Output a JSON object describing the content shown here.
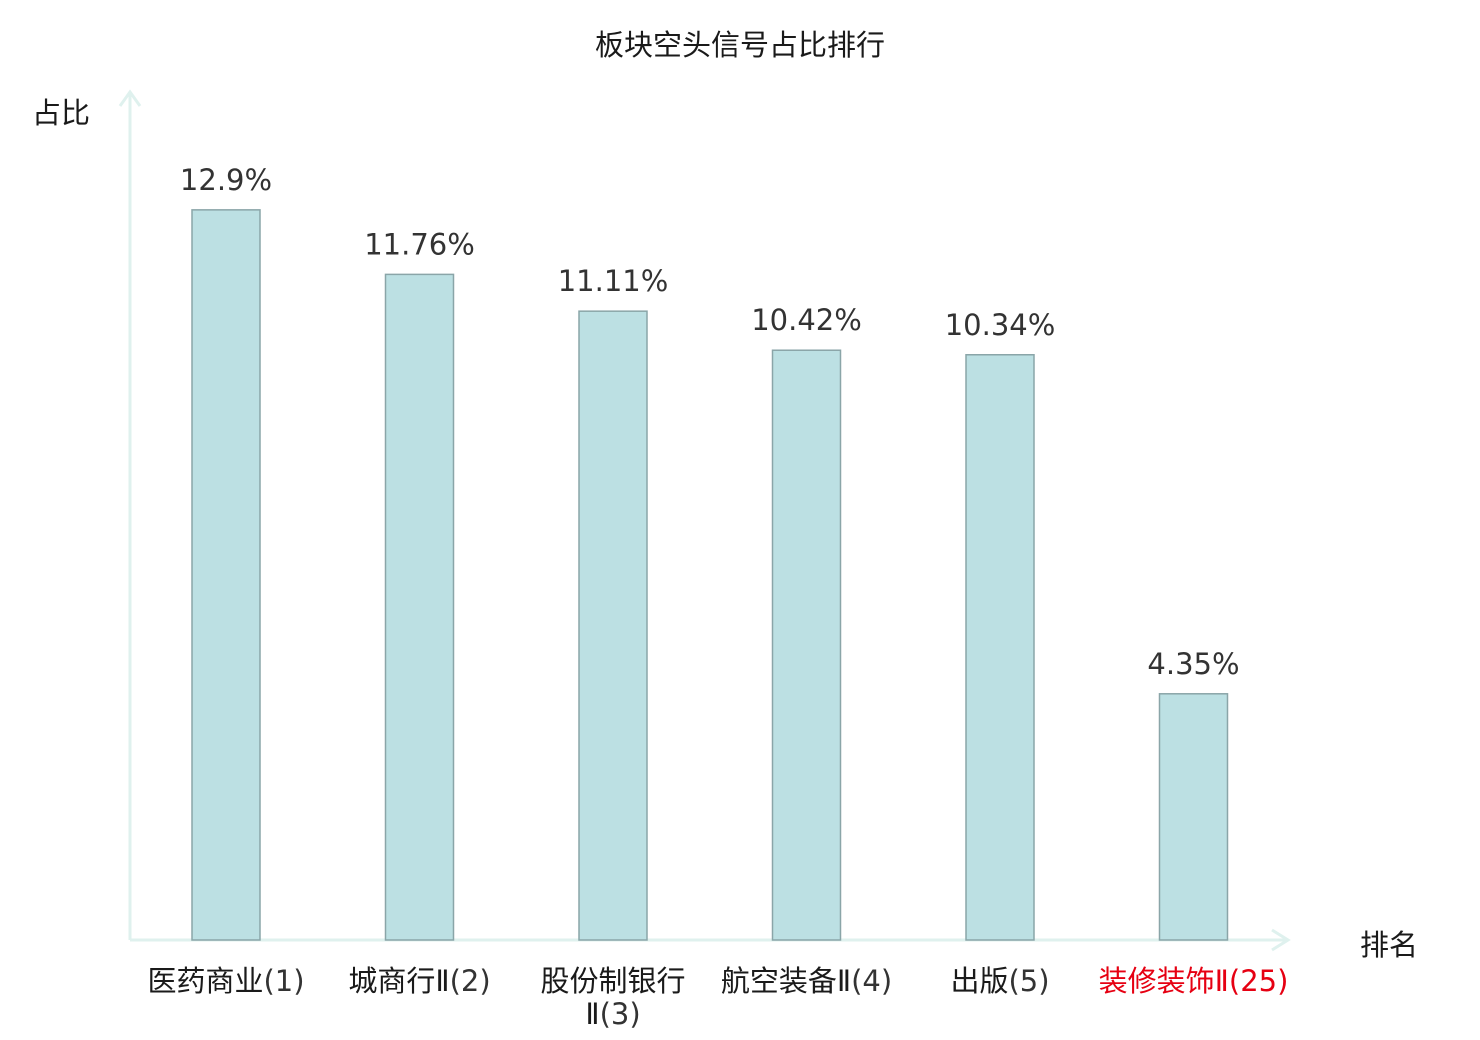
{
  "chart_data": {
    "type": "bar",
    "title": "板块空头信号占比排行",
    "ylabel": "占比",
    "xlabel": "排名",
    "categories": [
      {
        "name": "医药商业",
        "rank": "(1)",
        "highlight": false
      },
      {
        "name": "城商行Ⅱ",
        "rank": "(2)",
        "highlight": false
      },
      {
        "name": "股份制银行Ⅱ",
        "rank": "(3)",
        "highlight": false
      },
      {
        "name": "航空装备Ⅱ",
        "rank": "(4)",
        "highlight": false
      },
      {
        "name": "出版",
        "rank": "(5)",
        "highlight": false
      },
      {
        "name": "装修装饰Ⅱ",
        "rank": "(25)",
        "highlight": true
      }
    ],
    "values": [
      12.9,
      11.76,
      11.11,
      10.42,
      10.34,
      4.35
    ],
    "value_labels": [
      "12.9%",
      "11.76%",
      "11.11%",
      "10.42%",
      "10.34%",
      "4.35%"
    ],
    "ylim": [
      0,
      14
    ],
    "grid": false,
    "bar_color": "#bce0e3",
    "bar_edge_color": "#8aa5a8",
    "axis_color": "#dff1ee",
    "highlight_color": "#e60012"
  }
}
